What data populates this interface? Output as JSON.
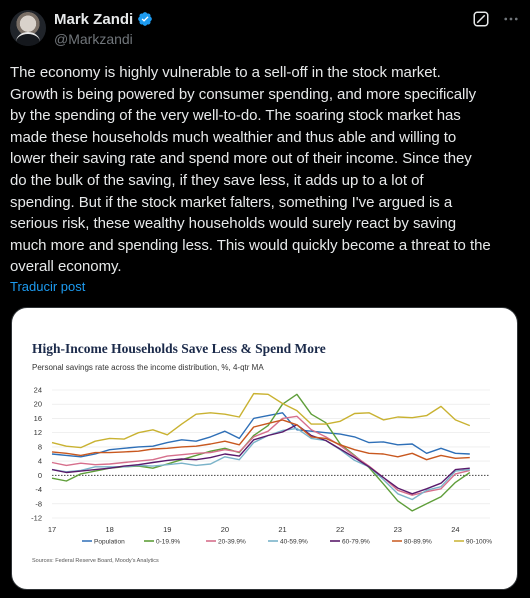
{
  "author": {
    "name": "Mark Zandi",
    "handle": "@Markzandi",
    "verified_color": "#1d9bf0"
  },
  "icons": {
    "grok": "grok-icon",
    "more": "more-icon",
    "verified": "verified-badge-icon"
  },
  "tweet": {
    "text_lines": [
      "The economy is highly vulnerable to a sell-off in the stock market.",
      "Growth is being powered by consumer spending, and more specifically",
      "by the spending of the very well-to-do. The soaring stock market has",
      "made these households much wealthier and thus able and willing to",
      "lower their saving rate and spend more out of their income. Since they",
      "do the bulk of the saving, if they save less, it adds up to a lot of",
      "spending. But if the stock market falters, something I've argued is a",
      "serious risk, these wealthy households would surely react by saving",
      "much more and spending less. This would quickly become a threat to the",
      "overall economy."
    ],
    "translate_label": "Traducir post"
  },
  "chart_data": {
    "type": "line",
    "title": "High-Income Households Save Less & Spend More",
    "subtitle": "Personal savings rate across the income distribution, %, 4-qtr MA",
    "source": "Sources: Federal Reserve Board, Moody's Analytics",
    "xlabel": "",
    "ylabel": "",
    "x_ticks": [
      "17",
      "18",
      "19",
      "20",
      "21",
      "22",
      "23",
      "24"
    ],
    "x_range": [
      2017.0,
      2024.6
    ],
    "y_ticks": [
      24,
      20,
      16,
      12,
      8,
      4,
      0,
      -4,
      -8,
      -12
    ],
    "ylim": [
      -12,
      24
    ],
    "zero_line": "dotted",
    "legend_position": "bottom",
    "x": [
      2017.0,
      2017.25,
      2017.5,
      2017.75,
      2018.0,
      2018.25,
      2018.5,
      2018.75,
      2019.0,
      2019.25,
      2019.5,
      2019.75,
      2020.0,
      2020.25,
      2020.5,
      2020.75,
      2021.0,
      2021.25,
      2021.5,
      2021.75,
      2022.0,
      2022.25,
      2022.5,
      2022.75,
      2023.0,
      2023.25,
      2023.5,
      2023.75,
      2024.0,
      2024.25
    ],
    "series": [
      {
        "name": "Population",
        "color": "#2e6fb7",
        "values": [
          6,
          5.6,
          5.2,
          6,
          7.2,
          7.6,
          8,
          8.2,
          9.2,
          10,
          9.6,
          10.8,
          12.4,
          10.4,
          16,
          16.8,
          17.6,
          12.8,
          12.4,
          12,
          11.6,
          10.8,
          9.2,
          9.4,
          8.6,
          8.8,
          6.2,
          7.6,
          6.2,
          6
        ]
      },
      {
        "name": "0-19.9%",
        "color": "#5f9e3a",
        "values": [
          -0.8,
          -1.6,
          0.4,
          1.2,
          2,
          2.4,
          2.6,
          2,
          3.2,
          4.4,
          5.6,
          6.8,
          7.6,
          6.4,
          11.2,
          14,
          20,
          22.8,
          17.2,
          14.8,
          8.8,
          5.6,
          2.2,
          -2.4,
          -7.2,
          -10,
          -8,
          -6,
          -2,
          0.8
        ]
      },
      {
        "name": "20-39.9%",
        "color": "#d66f8c",
        "values": [
          3.6,
          2.8,
          3.4,
          3,
          3.2,
          3.6,
          4,
          4.4,
          5.4,
          5.8,
          6.2,
          6.4,
          7.2,
          6.6,
          10.8,
          12.4,
          16,
          16.6,
          12.8,
          10.8,
          8.4,
          5.4,
          2.6,
          -0.6,
          -4.2,
          -5.6,
          -4.6,
          -3.8,
          0.4,
          1.4
        ]
      },
      {
        "name": "40-59.9%",
        "color": "#7ab3c9",
        "values": [
          1.6,
          1,
          1.4,
          2.4,
          2.4,
          2.4,
          2.8,
          2.6,
          3,
          3.4,
          2.8,
          3.2,
          5.2,
          4.4,
          9.2,
          11.2,
          12.6,
          13.2,
          10.4,
          9.8,
          7.2,
          4.2,
          2.4,
          -1.2,
          -5.2,
          -6.8,
          -4.2,
          -3.2,
          1.2,
          1.6
        ]
      },
      {
        "name": "60-79.9%",
        "color": "#5a1a6b",
        "values": [
          1.6,
          0.8,
          1.2,
          1.6,
          2,
          2.6,
          3,
          3.6,
          4.2,
          4.6,
          4.4,
          5,
          6,
          5.4,
          10,
          11.2,
          12.2,
          14.2,
          11.2,
          9.8,
          7.4,
          5,
          2.4,
          -0.6,
          -3.6,
          -5.2,
          -3.8,
          -2.2,
          1.6,
          2
        ]
      },
      {
        "name": "80-89.9%",
        "color": "#c8581f",
        "values": [
          6.6,
          6.2,
          5.6,
          6.4,
          6.4,
          6.6,
          6.8,
          7.4,
          7.6,
          8,
          8.2,
          8.8,
          9.6,
          8.6,
          13.6,
          14.6,
          15.6,
          14.2,
          10.8,
          10.4,
          8.6,
          7.2,
          6.2,
          6,
          5.2,
          6.2,
          4.4,
          5.6,
          4.8,
          5
        ]
      },
      {
        "name": "90-100%",
        "color": "#c9b231",
        "values": [
          9.2,
          8.2,
          7.8,
          9.6,
          10.4,
          10.2,
          12,
          12.8,
          11.4,
          14.4,
          17.2,
          17.6,
          17.2,
          16.4,
          23,
          22.8,
          20.2,
          18.2,
          14.4,
          14.4,
          15.2,
          17.4,
          17.6,
          15.6,
          16.4,
          16.2,
          16.8,
          19.4,
          15.6,
          14
        ]
      }
    ]
  }
}
